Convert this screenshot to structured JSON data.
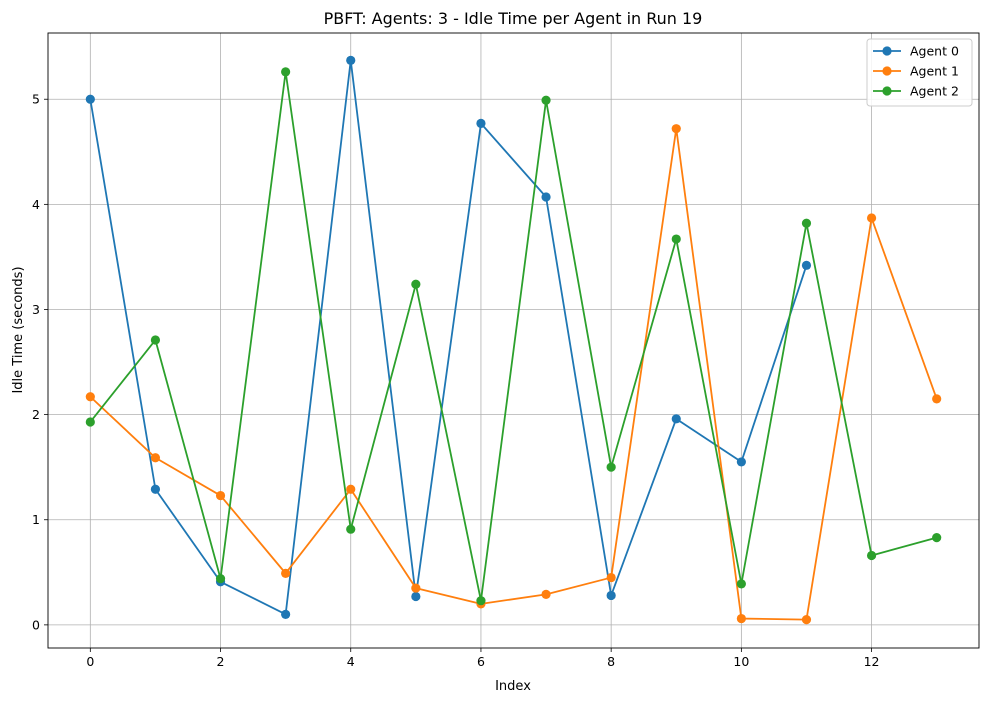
{
  "chart_data": {
    "type": "line",
    "title": "PBFT: Agents: 3 - Idle Time per Agent in Run 19",
    "xlabel": "Index",
    "ylabel": "Idle Time (seconds)",
    "x": [
      0,
      1,
      2,
      3,
      4,
      5,
      6,
      7,
      8,
      9,
      10,
      11,
      12,
      13
    ],
    "xlim": [
      -0.65,
      13.65
    ],
    "ylim": [
      -0.22,
      5.63
    ],
    "xticks": [
      0,
      2,
      4,
      6,
      8,
      10,
      12
    ],
    "yticks": [
      0,
      1,
      2,
      3,
      4,
      5
    ],
    "grid": true,
    "legend_position": "top-right",
    "series": [
      {
        "name": "Agent 0",
        "color": "#1f77b4",
        "values": [
          5.0,
          1.29,
          0.41,
          0.1,
          5.37,
          0.27,
          4.77,
          4.07,
          0.28,
          1.96,
          1.55,
          3.42,
          null,
          null
        ]
      },
      {
        "name": "Agent 1",
        "color": "#ff7f0e",
        "values": [
          2.17,
          1.59,
          1.23,
          0.49,
          1.29,
          0.35,
          0.2,
          0.29,
          0.45,
          4.72,
          0.06,
          0.05,
          3.87,
          2.15
        ]
      },
      {
        "name": "Agent 2",
        "color": "#2ca02c",
        "values": [
          1.93,
          2.71,
          0.44,
          5.26,
          0.91,
          3.24,
          0.23,
          4.99,
          1.5,
          3.67,
          0.39,
          3.82,
          0.66,
          0.83
        ]
      }
    ]
  }
}
